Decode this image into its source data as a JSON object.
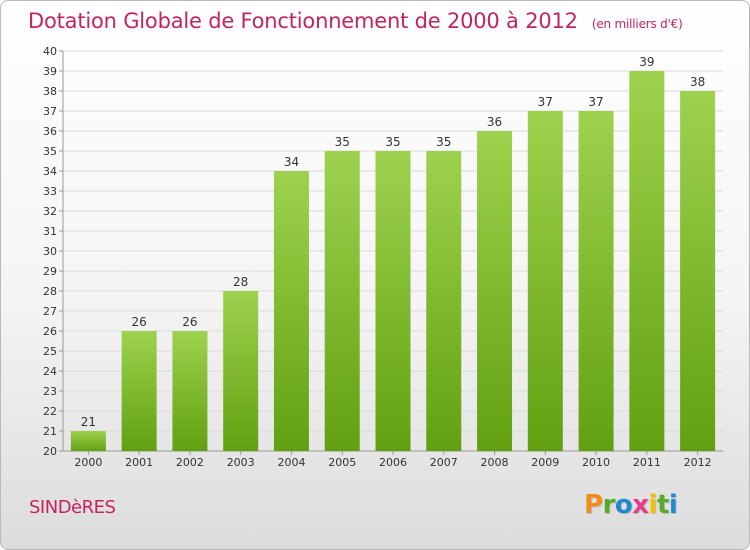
{
  "title": "Dotation Globale de Fonctionnement de 2000 à 2012",
  "subtitle": "(en milliers d'€)",
  "commune": "SINDèRES",
  "logo": {
    "letters": [
      "P",
      "r",
      "o",
      "x",
      "i",
      "t",
      "i"
    ],
    "colors": [
      "#f08c1c",
      "#5aaa2a",
      "#1e88d0",
      "#e63c8c",
      "#f2c200",
      "#5aaa2a",
      "#1e88d0"
    ]
  },
  "colors": {
    "bar_light": "#9ed24e",
    "bar_dark": "#62a011",
    "grid": "#dcdcdc",
    "axis": "#999999",
    "text": "#333333",
    "accent": "#c4245e"
  },
  "chart_data": {
    "type": "bar",
    "categories": [
      "2000",
      "2001",
      "2002",
      "2003",
      "2004",
      "2005",
      "2006",
      "2007",
      "2008",
      "2009",
      "2010",
      "2011",
      "2012"
    ],
    "values": [
      21,
      26,
      26,
      28,
      34,
      35,
      35,
      35,
      36,
      37,
      37,
      39,
      38
    ],
    "ylim": [
      20,
      40
    ],
    "yticks": [
      20,
      21,
      22,
      23,
      24,
      25,
      26,
      27,
      28,
      29,
      30,
      31,
      32,
      33,
      34,
      35,
      36,
      37,
      38,
      39,
      40
    ],
    "grid": true,
    "data_labels": true
  }
}
